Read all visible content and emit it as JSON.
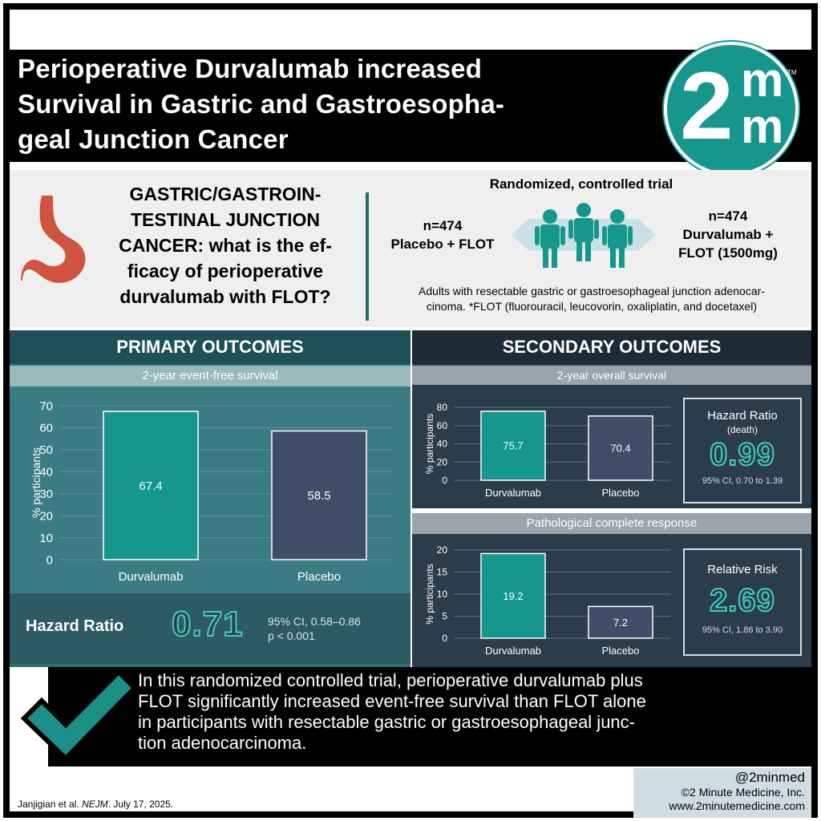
{
  "title": "Perioperative Durvalumab increased Survival in Gastric and Gastroesopha-geal Junction Cancer",
  "title_lines": [
    "Perioperative Durvalumab increased",
    "Survival in Gastric and Gastroesopha-",
    "geal Junction Cancer"
  ],
  "logo": {
    "two": "2",
    "m_top": "m",
    "m_bottom": "m",
    "tm": "TM"
  },
  "question": {
    "lines": [
      "GASTRIC/GASTROIN-",
      "TESTINAL JUNCTION",
      "CANCER: what is the ef-",
      "ficacy of perioperative",
      "durvalumab with FLOT?"
    ]
  },
  "trial": {
    "design": "Randomized, controlled trial",
    "left_arm": {
      "n": "n=474",
      "label": "Placebo + FLOT"
    },
    "right_arm": {
      "n": "n=474",
      "label_line1": "Durvalumab +",
      "label_line2": "FLOT (1500mg)"
    },
    "population_line1": "Adults with resectable gastric or gastroesophageal junction adenocar-",
    "population_line2": "cinoma. *FLOT (fluorouracil, leucovorin, oxaliplatin, and docetaxel)"
  },
  "primary": {
    "heading": "PRIMARY OUTCOMES",
    "subheading": "2-year event-free survival",
    "hazard_label": "Hazard Ratio",
    "hazard_value": "0.71",
    "ci": "95% CI, 0.58–0.86",
    "p": "p < 0.001"
  },
  "secondary": {
    "heading": "SECONDARY OUTCOMES",
    "sub1": "2-year overall survival",
    "sub2": "Pathological complete response",
    "box1": {
      "title": "Hazard Ratio",
      "subtitle": "(death)",
      "value": "0.99",
      "ci": "95% CI, 0.70 to 1.39"
    },
    "box2": {
      "title": "Relative Risk",
      "value": "2.69",
      "ci": "95% CI, 1.86 to 3.90"
    }
  },
  "chart_data": [
    {
      "type": "bar",
      "title": "2-year event-free survival",
      "categories": [
        "Durvalumab",
        "Placebo"
      ],
      "values": [
        67.4,
        58.5
      ],
      "ylabel": "% participants",
      "ylim": [
        0,
        70
      ],
      "yticks": [
        0,
        10,
        20,
        30,
        40,
        50,
        60,
        70
      ],
      "colors": [
        "#16978d",
        "#3f4e66"
      ],
      "grid": true
    },
    {
      "type": "bar",
      "title": "2-year overall survival",
      "categories": [
        "Durvalumab",
        "Placebo"
      ],
      "values": [
        75.7,
        70.4
      ],
      "ylabel": "% participants",
      "ylim": [
        0,
        80
      ],
      "yticks": [
        0,
        20,
        40,
        60,
        80
      ],
      "colors": [
        "#16978d",
        "#3f4e66"
      ],
      "grid": true
    },
    {
      "type": "bar",
      "title": "Pathological complete response",
      "categories": [
        "Durvalumab",
        "Placebo"
      ],
      "values": [
        19.2,
        7.2
      ],
      "ylabel": "% participants",
      "ylim": [
        0,
        20
      ],
      "yticks": [
        0,
        5,
        10,
        15,
        20
      ],
      "colors": [
        "#16978d",
        "#3f4e66"
      ],
      "grid": true
    }
  ],
  "conclusion": "In this randomized controlled trial, perioperative durvalumab plus FLOT significantly increased event-free survival than FLOT alone in participants with resectable gastric or gastroesophageal junc-tion adenocarcinoma.",
  "conclusion_lines": [
    "In this randomized controlled trial, perioperative durvalumab plus",
    "FLOT significantly increased event-free survival than FLOT alone",
    "in participants with resectable gastric or gastroesophageal junc-",
    "tion adenocarcinoma."
  ],
  "citation": {
    "authors": "Janjigian et al.",
    "journal": "NEJM",
    "date": "July 17, 2025."
  },
  "credit": {
    "handle": "@2minmed",
    "company": "©2 Minute Medicine, Inc.",
    "url": "www.2minutemedicine.com"
  },
  "colors": {
    "teal": "#16978d",
    "slate": "#3f4e66",
    "outline": "#3fd0c2"
  },
  "icons": {
    "organ": "stomach-icon",
    "people": "people-icon",
    "check": "checkmark-icon"
  }
}
